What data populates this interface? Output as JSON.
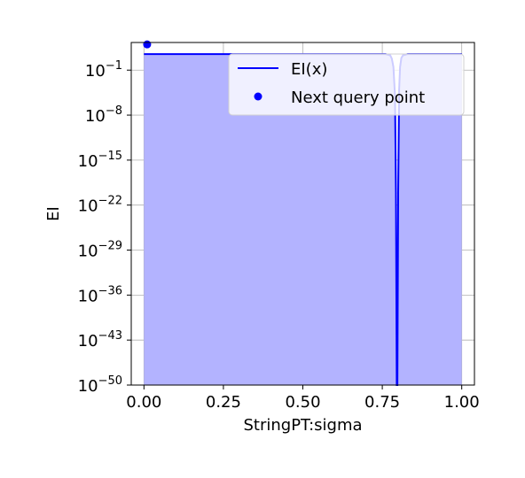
{
  "chart_data": {
    "type": "area",
    "xlabel": "StringPT:sigma",
    "ylabel": "EI",
    "xlim": [
      -0.04,
      1.04
    ],
    "ylim_log10": [
      -50,
      3.3
    ],
    "log_scale_y": true,
    "grid": true,
    "legend_position": "upper right",
    "x_ticks": [
      {
        "value": 0.0,
        "label": "0.00"
      },
      {
        "value": 0.25,
        "label": "0.25"
      },
      {
        "value": 0.5,
        "label": "0.50"
      },
      {
        "value": 0.75,
        "label": "0.75"
      },
      {
        "value": 1.0,
        "label": "1.00"
      }
    ],
    "y_ticks": [
      {
        "exp": -1,
        "base": "10",
        "sup": "−1"
      },
      {
        "exp": -8,
        "base": "10",
        "sup": "−8"
      },
      {
        "exp": -15,
        "base": "10",
        "sup": "−15"
      },
      {
        "exp": -22,
        "base": "10",
        "sup": "−22"
      },
      {
        "exp": -29,
        "base": "10",
        "sup": "−29"
      },
      {
        "exp": -36,
        "base": "10",
        "sup": "−36"
      },
      {
        "exp": -43,
        "base": "10",
        "sup": "−43"
      },
      {
        "exp": -50,
        "base": "10",
        "sup": "−50"
      }
    ],
    "series": [
      {
        "name": "EI(x)",
        "style": "line+fill",
        "color": "#0000ff",
        "fill_color": "#b3b3ff",
        "points": [
          [
            0.0,
            1.5
          ],
          [
            0.1,
            1.5
          ],
          [
            0.2,
            1.5
          ],
          [
            0.3,
            1.5
          ],
          [
            0.4,
            1.5
          ],
          [
            0.5,
            1.5
          ],
          [
            0.6,
            1.5
          ],
          [
            0.7,
            1.5
          ],
          [
            0.76,
            1.5
          ],
          [
            0.775,
            1.3
          ],
          [
            0.78,
            0.8
          ],
          [
            0.785,
            -0.5
          ],
          [
            0.79,
            -5
          ],
          [
            0.793,
            -20
          ],
          [
            0.7955,
            -50
          ],
          [
            0.7975,
            -50
          ],
          [
            0.8,
            -20
          ],
          [
            0.803,
            -4
          ],
          [
            0.806,
            -0.5
          ],
          [
            0.81,
            0.9
          ],
          [
            0.815,
            1.3
          ],
          [
            0.83,
            1.5
          ],
          [
            0.9,
            1.5
          ],
          [
            1.0,
            1.5
          ]
        ]
      },
      {
        "name": "Next query point",
        "style": "marker",
        "color": "#0000ff",
        "points": [
          [
            0.01,
            3.0
          ]
        ]
      }
    ]
  }
}
